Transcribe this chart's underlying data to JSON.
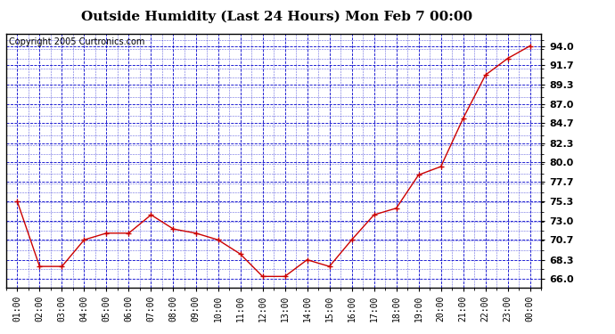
{
  "title": "Outside Humidity (Last 24 Hours) Mon Feb 7 00:00",
  "copyright": "Copyright 2005 Curtronics.com",
  "x_labels": [
    "01:00",
    "02:00",
    "03:00",
    "04:00",
    "05:00",
    "06:00",
    "07:00",
    "08:00",
    "09:00",
    "10:00",
    "11:00",
    "12:00",
    "13:00",
    "14:00",
    "15:00",
    "16:00",
    "17:00",
    "18:00",
    "19:00",
    "20:00",
    "21:00",
    "22:00",
    "23:00",
    "00:00"
  ],
  "y_values": [
    75.3,
    67.5,
    67.5,
    70.7,
    71.5,
    71.5,
    73.7,
    72.0,
    71.5,
    70.7,
    69.0,
    66.3,
    66.3,
    68.3,
    67.5,
    70.7,
    73.7,
    74.5,
    78.5,
    79.5,
    85.3,
    90.5,
    92.5,
    94.0
  ],
  "line_color": "#cc0000",
  "marker_color": "#cc0000",
  "bg_color": "#ffffff",
  "plot_bg_color": "#ffffff",
  "grid_color": "#0000cc",
  "title_fontsize": 11,
  "copyright_fontsize": 7,
  "ylim": [
    65.0,
    95.5
  ],
  "yticks": [
    66.0,
    68.3,
    70.7,
    73.0,
    75.3,
    77.7,
    80.0,
    82.3,
    84.7,
    87.0,
    89.3,
    91.7,
    94.0
  ]
}
